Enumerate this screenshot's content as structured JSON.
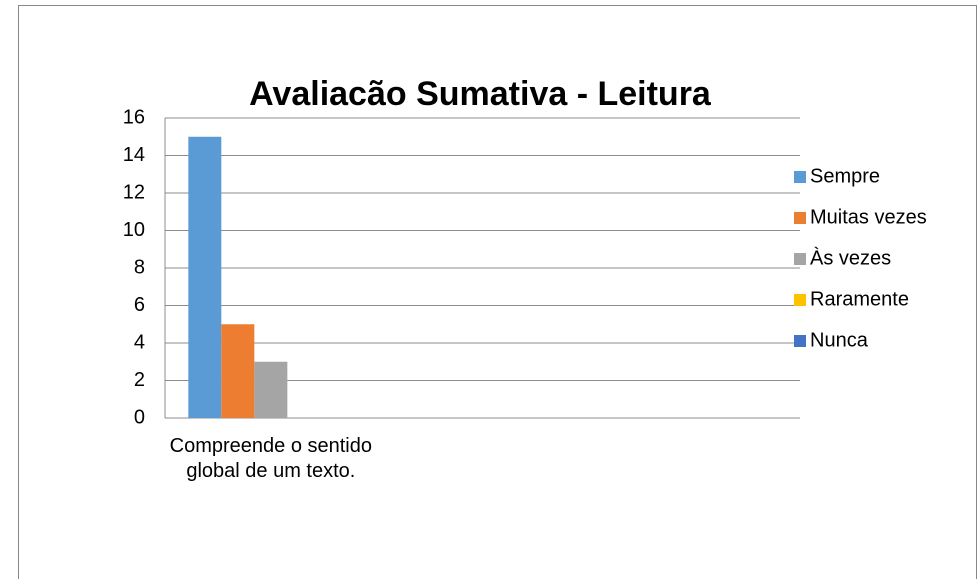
{
  "chart_data": {
    "type": "bar",
    "title": "Avaliacão Sumativa - Leitura",
    "categories": [
      "Compreende o sentido global de um texto.",
      null,
      null
    ],
    "series": [
      {
        "name": "Sempre",
        "color": "#5b9bd5",
        "values": [
          15,
          null,
          null
        ]
      },
      {
        "name": "Muitas vezes",
        "color": "#ed7d31",
        "values": [
          5,
          null,
          null
        ]
      },
      {
        "name": "Às vezes",
        "color": "#a5a5a5",
        "values": [
          3,
          null,
          null
        ]
      },
      {
        "name": "Raramente",
        "color": "#ffc000",
        "values": [
          0,
          null,
          null
        ]
      },
      {
        "name": "Nunca",
        "color": "#4472c4",
        "values": [
          0,
          null,
          null
        ]
      }
    ],
    "ylim": [
      0,
      16
    ],
    "yticks": [
      0,
      2,
      4,
      6,
      8,
      10,
      12,
      14,
      16
    ],
    "grid": true,
    "legend": "right"
  }
}
